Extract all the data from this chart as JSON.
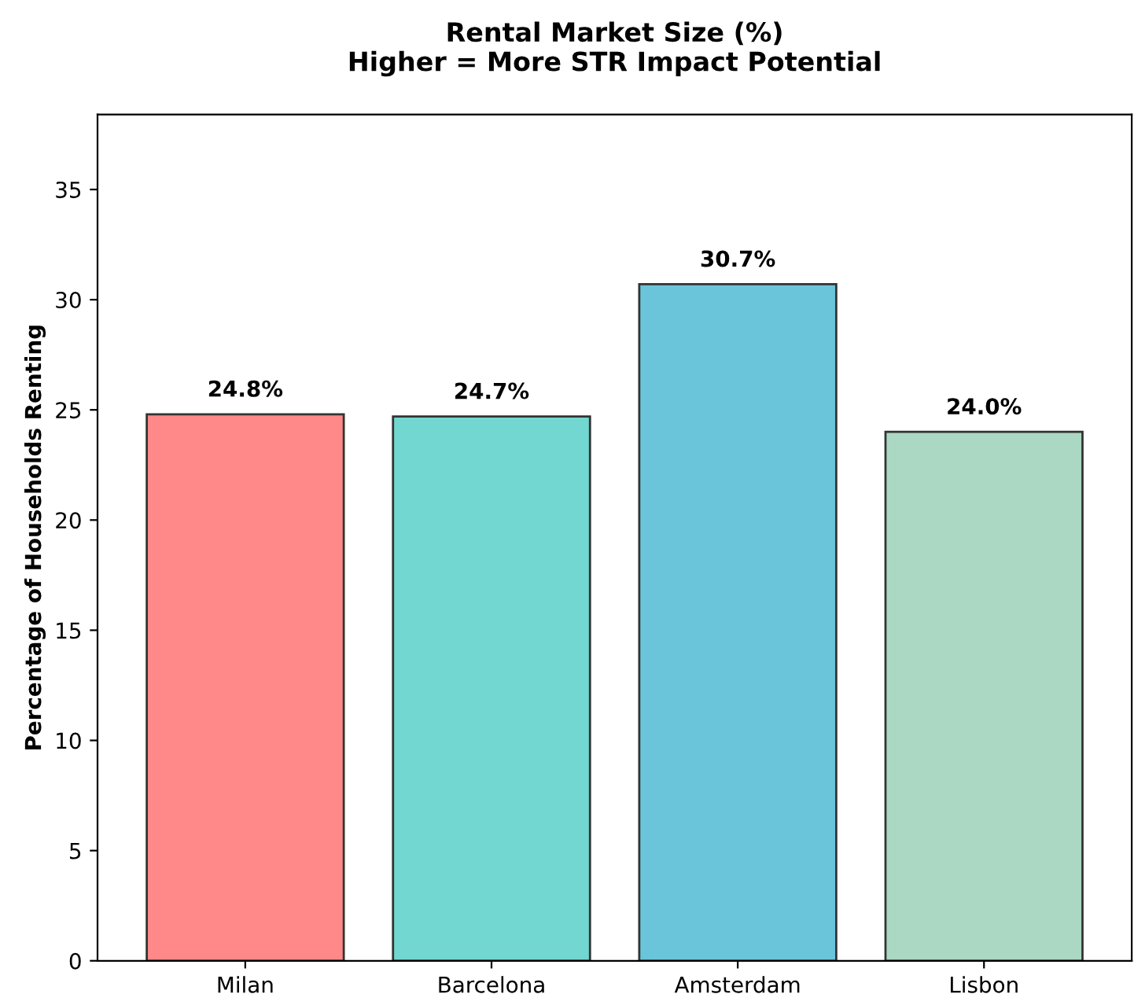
{
  "chart_data": {
    "type": "bar",
    "title": "Rental Market Size (%)\nHigher = More STR Impact Potential",
    "ylabel": "Percentage of Households Renting",
    "categories": [
      "Milan",
      "Barcelona",
      "Amsterdam",
      "Lisbon"
    ],
    "values": [
      24.8,
      24.7,
      30.7,
      24.0
    ],
    "colors": [
      "#ff8989",
      "#71d7d0",
      "#6ac5da",
      "#abd8c3"
    ],
    "value_labels": [
      "24.8%",
      "24.7%",
      "30.7%",
      "24.0%"
    ],
    "ylim": [
      0,
      38.4
    ],
    "yticks": [
      0,
      5,
      10,
      15,
      20,
      25,
      30,
      35
    ],
    "grid": false,
    "legend": false
  }
}
